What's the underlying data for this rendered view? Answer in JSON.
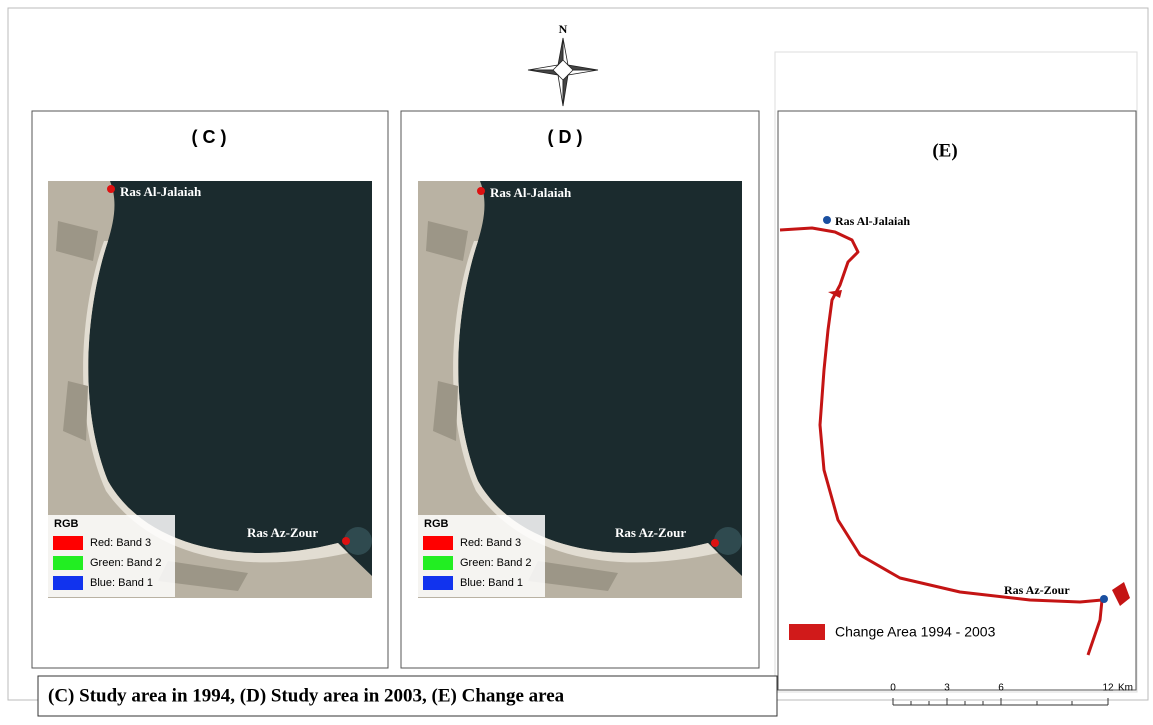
{
  "north": "N",
  "panels": [
    {
      "label": "( C )",
      "places": [
        "Ras Al-Jalaiah",
        "Ras Az-Zour"
      ],
      "legend": {
        "title": "RGB",
        "items": [
          "Red: Band 3",
          "Green: Band 2",
          "Blue: Band 1"
        ]
      }
    },
    {
      "label": "( D )",
      "places": [
        "Ras Al-Jalaiah",
        "Ras Az-Zour"
      ],
      "legend": {
        "title": "RGB",
        "items": [
          "Red: Band 3",
          "Green: Band 2",
          "Blue: Band 1"
        ]
      }
    }
  ],
  "change_panel": {
    "label": "(E)",
    "places": [
      "Ras Al-Jalaiah",
      "Ras Az-Zour"
    ],
    "legend": "Change Area 1994 - 2003"
  },
  "caption": "(C) Study area in 1994, (D) Study area in 2003, (E) Change area",
  "scale_bar": {
    "labels": [
      "0",
      "3",
      "6",
      "12"
    ],
    "unit": "Km"
  }
}
